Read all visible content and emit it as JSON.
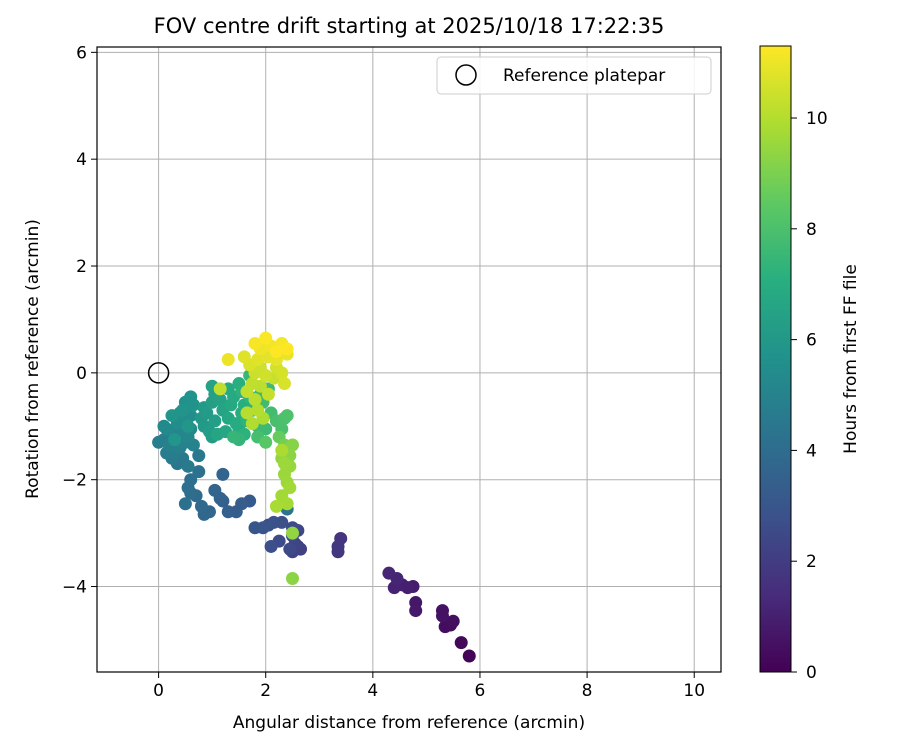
{
  "chart_data": {
    "type": "scatter",
    "title": "FOV centre drift starting at 2025/10/18 17:22:35",
    "xlabel": "Angular distance from reference (arcmin)",
    "ylabel": "Rotation from reference (arcmin)",
    "xlim": [
      -1.15,
      10.5
    ],
    "ylim": [
      -5.6,
      6.1
    ],
    "xticks": [
      0,
      2,
      4,
      6,
      8,
      10
    ],
    "yticks": [
      -4,
      -2,
      0,
      2,
      4,
      6
    ],
    "grid": true,
    "legend": {
      "position": "top-right",
      "entries": [
        "Reference platepar"
      ]
    },
    "reference_point": {
      "x": 0,
      "y": 0,
      "label": "Reference platepar"
    },
    "colorbar": {
      "label": "Hours from first FF file",
      "min": 0,
      "max": 11.3,
      "ticks": [
        0,
        2,
        4,
        6,
        8,
        10
      ],
      "colormap": "viridis"
    },
    "points": [
      {
        "x": 5.8,
        "y": -5.3,
        "h": 0.1
      },
      {
        "x": 5.65,
        "y": -5.05,
        "h": 0.2
      },
      {
        "x": 5.45,
        "y": -4.72,
        "h": 0.35
      },
      {
        "x": 5.35,
        "y": -4.75,
        "h": 0.4
      },
      {
        "x": 5.3,
        "y": -4.45,
        "h": 0.5
      },
      {
        "x": 5.5,
        "y": -4.65,
        "h": 0.45
      },
      {
        "x": 5.3,
        "y": -4.55,
        "h": 0.55
      },
      {
        "x": 4.8,
        "y": -4.3,
        "h": 0.7
      },
      {
        "x": 4.8,
        "y": -4.45,
        "h": 0.75
      },
      {
        "x": 4.75,
        "y": -4.0,
        "h": 0.9
      },
      {
        "x": 4.65,
        "y": -4.02,
        "h": 0.95
      },
      {
        "x": 4.55,
        "y": -3.97,
        "h": 1.0
      },
      {
        "x": 4.4,
        "y": -4.02,
        "h": 1.1
      },
      {
        "x": 4.45,
        "y": -3.85,
        "h": 1.15
      },
      {
        "x": 4.3,
        "y": -3.75,
        "h": 1.2
      },
      {
        "x": 3.4,
        "y": -3.1,
        "h": 1.7
      },
      {
        "x": 3.35,
        "y": -3.25,
        "h": 1.8
      },
      {
        "x": 3.35,
        "y": -3.35,
        "h": 1.85
      },
      {
        "x": 2.6,
        "y": -3.25,
        "h": 2.1
      },
      {
        "x": 2.65,
        "y": -3.3,
        "h": 2.15
      },
      {
        "x": 2.5,
        "y": -3.35,
        "h": 2.2
      },
      {
        "x": 2.55,
        "y": -3.2,
        "h": 2.3
      },
      {
        "x": 2.6,
        "y": -2.95,
        "h": 2.4
      },
      {
        "x": 2.5,
        "y": -3.05,
        "h": 2.5
      },
      {
        "x": 2.45,
        "y": -3.3,
        "h": 2.5
      },
      {
        "x": 2.25,
        "y": -3.15,
        "h": 2.6
      },
      {
        "x": 2.1,
        "y": -3.25,
        "h": 2.7
      },
      {
        "x": 2.05,
        "y": -2.85,
        "h": 2.8
      },
      {
        "x": 2.15,
        "y": -2.8,
        "h": 2.85
      },
      {
        "x": 1.95,
        "y": -2.9,
        "h": 2.95
      },
      {
        "x": 1.8,
        "y": -2.9,
        "h": 3.0
      },
      {
        "x": 2.3,
        "y": -2.8,
        "h": 2.75
      },
      {
        "x": 2.5,
        "y": -2.9,
        "h": 2.6
      },
      {
        "x": 1.7,
        "y": -2.4,
        "h": 3.2
      },
      {
        "x": 1.55,
        "y": -2.45,
        "h": 3.3
      },
      {
        "x": 1.45,
        "y": -2.6,
        "h": 3.35
      },
      {
        "x": 1.3,
        "y": -2.6,
        "h": 3.4
      },
      {
        "x": 1.2,
        "y": -2.4,
        "h": 3.5
      },
      {
        "x": 1.15,
        "y": -2.35,
        "h": 3.55
      },
      {
        "x": 1.05,
        "y": -2.2,
        "h": 3.6
      },
      {
        "x": 0.95,
        "y": -2.6,
        "h": 3.7
      },
      {
        "x": 0.85,
        "y": -2.65,
        "h": 3.75
      },
      {
        "x": 0.8,
        "y": -2.5,
        "h": 3.8
      },
      {
        "x": 0.7,
        "y": -2.3,
        "h": 3.9
      },
      {
        "x": 0.6,
        "y": -2.25,
        "h": 4.0
      },
      {
        "x": 0.55,
        "y": -2.15,
        "h": 4.05
      },
      {
        "x": 0.6,
        "y": -2.0,
        "h": 4.1
      },
      {
        "x": 0.5,
        "y": -2.45,
        "h": 4.15
      },
      {
        "x": 0.75,
        "y": -1.85,
        "h": 4.2
      },
      {
        "x": 1.2,
        "y": -1.9,
        "h": 3.6
      },
      {
        "x": 2.4,
        "y": -2.55,
        "h": 4.3
      },
      {
        "x": 0.35,
        "y": -1.7,
        "h": 4.4
      },
      {
        "x": 0.45,
        "y": -1.6,
        "h": 4.5
      },
      {
        "x": 0.25,
        "y": -1.6,
        "h": 4.6
      },
      {
        "x": 0.55,
        "y": -1.75,
        "h": 4.6
      },
      {
        "x": 0.15,
        "y": -1.5,
        "h": 4.7
      },
      {
        "x": 0.3,
        "y": -1.5,
        "h": 4.75
      },
      {
        "x": 0.0,
        "y": -1.3,
        "h": 4.8
      },
      {
        "x": 0.1,
        "y": -1.25,
        "h": 4.85
      },
      {
        "x": 0.2,
        "y": -1.35,
        "h": 4.9
      },
      {
        "x": 0.4,
        "y": -1.4,
        "h": 4.9
      },
      {
        "x": 0.5,
        "y": -1.3,
        "h": 5.0
      },
      {
        "x": 0.65,
        "y": -1.35,
        "h": 5.0
      },
      {
        "x": 0.75,
        "y": -1.55,
        "h": 4.5
      },
      {
        "x": 0.3,
        "y": -1.15,
        "h": 5.1
      },
      {
        "x": 0.45,
        "y": -1.1,
        "h": 5.15
      },
      {
        "x": 0.55,
        "y": -1.2,
        "h": 5.2
      },
      {
        "x": 0.6,
        "y": -1.05,
        "h": 5.25
      },
      {
        "x": 0.15,
        "y": -1.05,
        "h": 5.3
      },
      {
        "x": 0.1,
        "y": -1.0,
        "h": 5.35
      },
      {
        "x": 0.35,
        "y": -0.95,
        "h": 5.4
      },
      {
        "x": 0.5,
        "y": -0.85,
        "h": 5.45
      },
      {
        "x": 0.6,
        "y": -0.8,
        "h": 5.5
      },
      {
        "x": 0.4,
        "y": -0.75,
        "h": 5.55
      },
      {
        "x": 0.55,
        "y": -0.65,
        "h": 5.6
      },
      {
        "x": 0.5,
        "y": -0.55,
        "h": 5.65
      },
      {
        "x": 0.6,
        "y": -0.45,
        "h": 5.7
      },
      {
        "x": 0.65,
        "y": -0.6,
        "h": 5.75
      },
      {
        "x": 0.45,
        "y": -0.7,
        "h": 5.8
      },
      {
        "x": 0.25,
        "y": -0.8,
        "h": 5.85
      },
      {
        "x": 0.3,
        "y": -1.25,
        "h": 5.9
      },
      {
        "x": 0.55,
        "y": -1.0,
        "h": 5.95
      },
      {
        "x": 0.8,
        "y": -0.85,
        "h": 6.0
      },
      {
        "x": 0.85,
        "y": -1.0,
        "h": 6.05
      },
      {
        "x": 0.85,
        "y": -0.65,
        "h": 6.1
      },
      {
        "x": 0.9,
        "y": -0.75,
        "h": 6.15
      },
      {
        "x": 0.95,
        "y": -1.1,
        "h": 6.2
      },
      {
        "x": 1.0,
        "y": -1.2,
        "h": 6.25
      },
      {
        "x": 1.05,
        "y": -0.9,
        "h": 6.3
      },
      {
        "x": 1.0,
        "y": -0.55,
        "h": 6.35
      },
      {
        "x": 1.05,
        "y": -0.4,
        "h": 6.4
      },
      {
        "x": 1.0,
        "y": -0.25,
        "h": 6.45
      },
      {
        "x": 1.15,
        "y": -0.5,
        "h": 6.5
      },
      {
        "x": 1.2,
        "y": -0.7,
        "h": 6.55
      },
      {
        "x": 1.1,
        "y": -1.15,
        "h": 6.6
      },
      {
        "x": 1.25,
        "y": -1.1,
        "h": 6.65
      },
      {
        "x": 1.3,
        "y": -0.85,
        "h": 6.7
      },
      {
        "x": 1.35,
        "y": -0.6,
        "h": 6.75
      },
      {
        "x": 1.4,
        "y": -0.45,
        "h": 6.8
      },
      {
        "x": 1.3,
        "y": -0.3,
        "h": 6.85
      },
      {
        "x": 1.45,
        "y": -0.95,
        "h": 6.9
      },
      {
        "x": 1.5,
        "y": -1.05,
        "h": 6.95
      },
      {
        "x": 1.55,
        "y": -0.75,
        "h": 7.0
      },
      {
        "x": 1.6,
        "y": -0.6,
        "h": 7.05
      },
      {
        "x": 1.5,
        "y": -0.2,
        "h": 7.1
      },
      {
        "x": 1.55,
        "y": -0.35,
        "h": 7.15
      },
      {
        "x": 1.6,
        "y": -1.15,
        "h": 7.2
      },
      {
        "x": 1.65,
        "y": -0.9,
        "h": 7.25
      },
      {
        "x": 1.7,
        "y": -0.45,
        "h": 7.3
      },
      {
        "x": 1.75,
        "y": -0.7,
        "h": 7.35
      },
      {
        "x": 1.5,
        "y": -1.25,
        "h": 7.4
      },
      {
        "x": 1.4,
        "y": -1.2,
        "h": 7.45
      },
      {
        "x": 1.7,
        "y": -0.05,
        "h": 7.5
      },
      {
        "x": 1.85,
        "y": -1.0,
        "h": 7.55
      },
      {
        "x": 1.9,
        "y": -0.4,
        "h": 7.6
      },
      {
        "x": 2.0,
        "y": -1.05,
        "h": 7.65
      },
      {
        "x": 2.05,
        "y": -0.3,
        "h": 7.7
      },
      {
        "x": 1.95,
        "y": -0.55,
        "h": 7.75
      },
      {
        "x": 2.1,
        "y": -0.75,
        "h": 7.8
      },
      {
        "x": 1.85,
        "y": -1.2,
        "h": 7.85
      },
      {
        "x": 2.2,
        "y": -0.9,
        "h": 7.9
      },
      {
        "x": 2.3,
        "y": -1.05,
        "h": 7.95
      },
      {
        "x": 2.35,
        "y": -0.85,
        "h": 8.0
      },
      {
        "x": 2.4,
        "y": -0.8,
        "h": 8.05
      },
      {
        "x": 2.0,
        "y": -1.3,
        "h": 8.3
      },
      {
        "x": 2.25,
        "y": -1.2,
        "h": 8.6
      },
      {
        "x": 2.35,
        "y": -1.35,
        "h": 8.9
      },
      {
        "x": 2.5,
        "y": -1.35,
        "h": 9.2
      },
      {
        "x": 2.45,
        "y": -1.55,
        "h": 9.3
      },
      {
        "x": 2.3,
        "y": -1.6,
        "h": 9.4
      },
      {
        "x": 2.45,
        "y": -1.75,
        "h": 9.5
      },
      {
        "x": 2.35,
        "y": -1.9,
        "h": 9.55
      },
      {
        "x": 2.4,
        "y": -2.05,
        "h": 9.6
      },
      {
        "x": 2.45,
        "y": -2.15,
        "h": 9.65
      },
      {
        "x": 2.3,
        "y": -2.3,
        "h": 9.7
      },
      {
        "x": 2.4,
        "y": -2.45,
        "h": 9.75
      },
      {
        "x": 2.2,
        "y": -2.5,
        "h": 9.8
      },
      {
        "x": 2.5,
        "y": -3.0,
        "h": 9.4
      },
      {
        "x": 2.5,
        "y": -3.85,
        "h": 9.3
      },
      {
        "x": 2.35,
        "y": -1.7,
        "h": 9.6
      },
      {
        "x": 2.3,
        "y": -1.45,
        "h": 9.85
      },
      {
        "x": 1.95,
        "y": -0.85,
        "h": 9.9
      },
      {
        "x": 1.75,
        "y": -0.95,
        "h": 9.95
      },
      {
        "x": 1.85,
        "y": -0.7,
        "h": 10.0
      },
      {
        "x": 1.65,
        "y": -0.75,
        "h": 10.05
      },
      {
        "x": 1.8,
        "y": -0.5,
        "h": 10.1
      },
      {
        "x": 1.9,
        "y": -0.25,
        "h": 10.15
      },
      {
        "x": 1.75,
        "y": -0.2,
        "h": 10.2
      },
      {
        "x": 1.15,
        "y": -0.3,
        "h": 10.2
      },
      {
        "x": 1.65,
        "y": -0.35,
        "h": 10.25
      },
      {
        "x": 2.05,
        "y": -0.4,
        "h": 10.3
      },
      {
        "x": 2.15,
        "y": -0.1,
        "h": 10.35
      },
      {
        "x": 1.8,
        "y": 0.0,
        "h": 10.4
      },
      {
        "x": 1.9,
        "y": 0.1,
        "h": 10.45
      },
      {
        "x": 2.0,
        "y": -0.05,
        "h": 10.5
      },
      {
        "x": 2.2,
        "y": 0.1,
        "h": 10.55
      },
      {
        "x": 2.3,
        "y": 0.0,
        "h": 10.6
      },
      {
        "x": 2.35,
        "y": -0.2,
        "h": 10.65
      },
      {
        "x": 1.7,
        "y": 0.15,
        "h": 10.7
      },
      {
        "x": 1.6,
        "y": 0.3,
        "h": 10.75
      },
      {
        "x": 1.85,
        "y": 0.25,
        "h": 10.8
      },
      {
        "x": 2.05,
        "y": 0.3,
        "h": 10.85
      },
      {
        "x": 2.2,
        "y": 0.25,
        "h": 10.9
      },
      {
        "x": 2.4,
        "y": 0.35,
        "h": 10.95
      },
      {
        "x": 1.3,
        "y": 0.25,
        "h": 11.0
      },
      {
        "x": 1.9,
        "y": 0.45,
        "h": 11.05
      },
      {
        "x": 2.1,
        "y": 0.5,
        "h": 11.1
      },
      {
        "x": 2.3,
        "y": 0.55,
        "h": 11.15
      },
      {
        "x": 1.8,
        "y": 0.55,
        "h": 11.2
      },
      {
        "x": 2.0,
        "y": 0.65,
        "h": 11.25
      },
      {
        "x": 2.4,
        "y": 0.45,
        "h": 11.3
      },
      {
        "x": 2.2,
        "y": 0.4,
        "h": 11.3
      }
    ]
  }
}
